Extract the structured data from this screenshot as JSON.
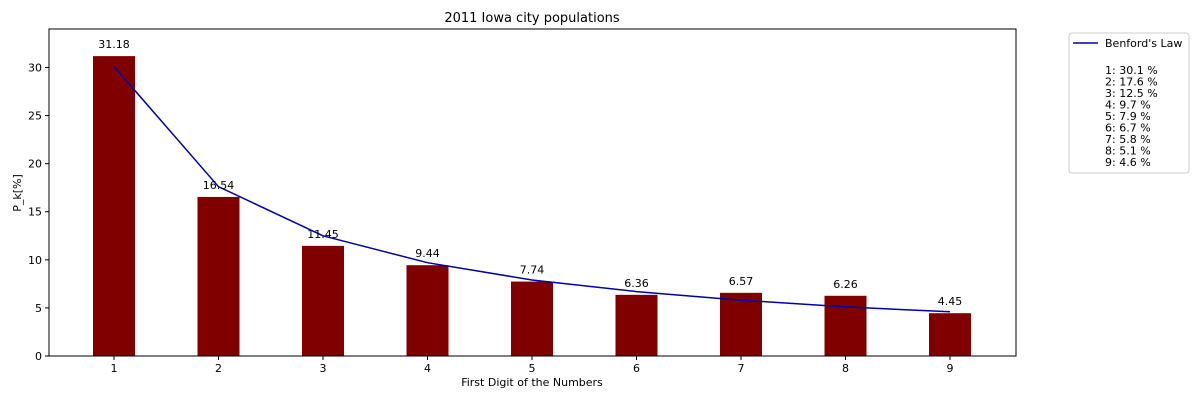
{
  "chart_data": {
    "type": "bar",
    "title": "2011 Iowa city populations",
    "xlabel": "First Digit of the Numbers",
    "ylabel": "P_k[%]",
    "ylim": [
      0,
      34
    ],
    "yticks": [
      0,
      5,
      10,
      15,
      20,
      25,
      30
    ],
    "categories": [
      "1",
      "2",
      "3",
      "4",
      "5",
      "6",
      "7",
      "8",
      "9"
    ],
    "values": [
      31.18,
      16.54,
      11.45,
      9.44,
      7.74,
      6.36,
      6.57,
      6.26,
      4.45
    ],
    "value_labels": [
      "31.18",
      "16.54",
      "11.45",
      "9.44",
      "7.74",
      "6.36",
      "6.57",
      "6.26",
      "4.45"
    ],
    "bar_color": "#800000",
    "series": [
      {
        "name": "Benford's Law",
        "type": "line",
        "color": "#0000aa",
        "values": [
          30.1,
          17.6,
          12.5,
          9.7,
          7.9,
          6.7,
          5.8,
          5.1,
          4.6
        ]
      }
    ],
    "legend": {
      "position": "outside-right",
      "entries": [
        "Benford's Law"
      ],
      "notes": [
        "",
        "1: 30.1 %",
        "2: 17.6 %",
        "3: 12.5 %",
        "4: 9.7 %",
        "5: 7.9 %",
        "6: 6.7 %",
        "7: 5.8 %",
        "8: 5.1 %",
        "9: 4.6 %"
      ]
    }
  }
}
